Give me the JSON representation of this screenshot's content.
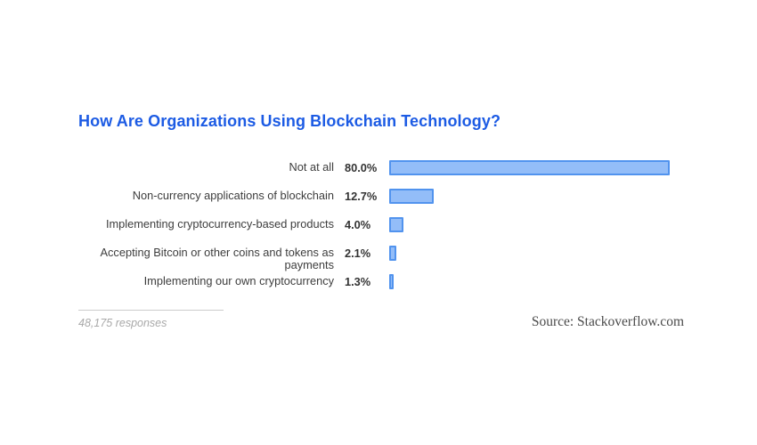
{
  "title": "How Are Organizations Using Blockchain Technology?",
  "footer": {
    "responses": "48,175 responses",
    "source": "Source: Stackoverflow.com"
  },
  "colors": {
    "title": "#1c5be4",
    "bar_fill": "#93bdf8",
    "bar_border": "#5193ee",
    "label_text": "#3d3d3d",
    "value_text": "#333333",
    "responses_text": "#a9a9a9",
    "source_text": "#4a4a4a",
    "divider": "#cccccc",
    "background": "#ffffff"
  },
  "chart_data": {
    "type": "bar",
    "orientation": "horizontal",
    "title": "How Are Organizations Using Blockchain Technology?",
    "categories": [
      "Not at all",
      "Non-currency applications of blockchain",
      "Implementing cryptocurrency-based products",
      "Accepting Bitcoin or other coins and tokens as payments",
      "Implementing our own cryptocurrency"
    ],
    "values": [
      80.0,
      12.7,
      4.0,
      2.1,
      1.3
    ],
    "value_labels": [
      "80.0%",
      "12.7%",
      "4.0%",
      "2.1%",
      "1.3%"
    ],
    "unit": "%",
    "xlim": [
      0,
      80
    ],
    "grid": false,
    "legend": null,
    "subtitle": null,
    "xlabel": "",
    "ylabel": ""
  }
}
